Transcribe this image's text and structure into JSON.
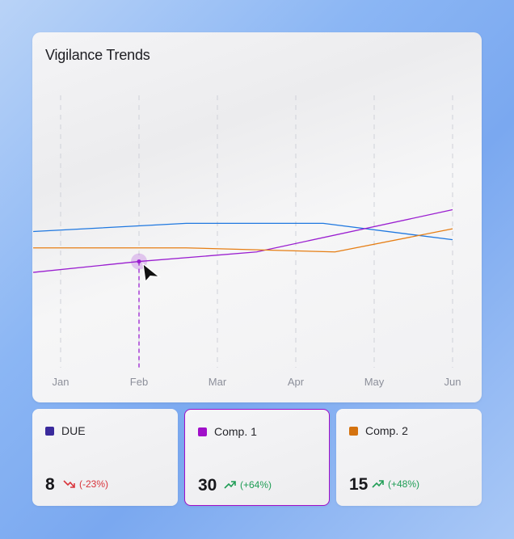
{
  "chart_data": {
    "type": "line",
    "title": "Vigilance Trends",
    "categories": [
      "Jan",
      "Feb",
      "Mar",
      "Apr",
      "May",
      "Jun"
    ],
    "grid": "vertical-dashed",
    "highlight": {
      "series": "Comp. 1",
      "x": "Feb"
    },
    "series": [
      {
        "name": "DUE",
        "color": "#1f78e0",
        "points": [
          [
            -0.35,
            50
          ],
          [
            1.6,
            53
          ],
          [
            3.35,
            53
          ],
          [
            5,
            47
          ]
        ]
      },
      {
        "name": "Comp. 1",
        "color": "#9a1ed0",
        "points": [
          [
            -0.35,
            35
          ],
          [
            1,
            39
          ],
          [
            2.5,
            42.5
          ],
          [
            5,
            58
          ]
        ]
      },
      {
        "name": "Comp. 2",
        "color": "#e67e14",
        "points": [
          [
            -0.35,
            44
          ],
          [
            1.6,
            44
          ],
          [
            3.5,
            42.5
          ],
          [
            5,
            51
          ]
        ]
      }
    ],
    "ylim": [
      0,
      100
    ]
  },
  "stats": [
    {
      "label": "DUE",
      "color": "#3a2a9c",
      "value": "8",
      "change": "(-23%)",
      "direction": "down",
      "trend_color": "#d9343b",
      "icon": "trend-down-icon"
    },
    {
      "label": "Comp. 1",
      "color": "#a00fc9",
      "value": "30",
      "change": "(+64%)",
      "direction": "up",
      "trend_color": "#1f9d55",
      "icon": "trend-up-icon"
    },
    {
      "label": "Comp. 2",
      "color": "#d4720f",
      "value": "15",
      "change": "(+48%)",
      "direction": "up",
      "trend_color": "#1f9d55",
      "icon": "trend-up-icon"
    }
  ]
}
